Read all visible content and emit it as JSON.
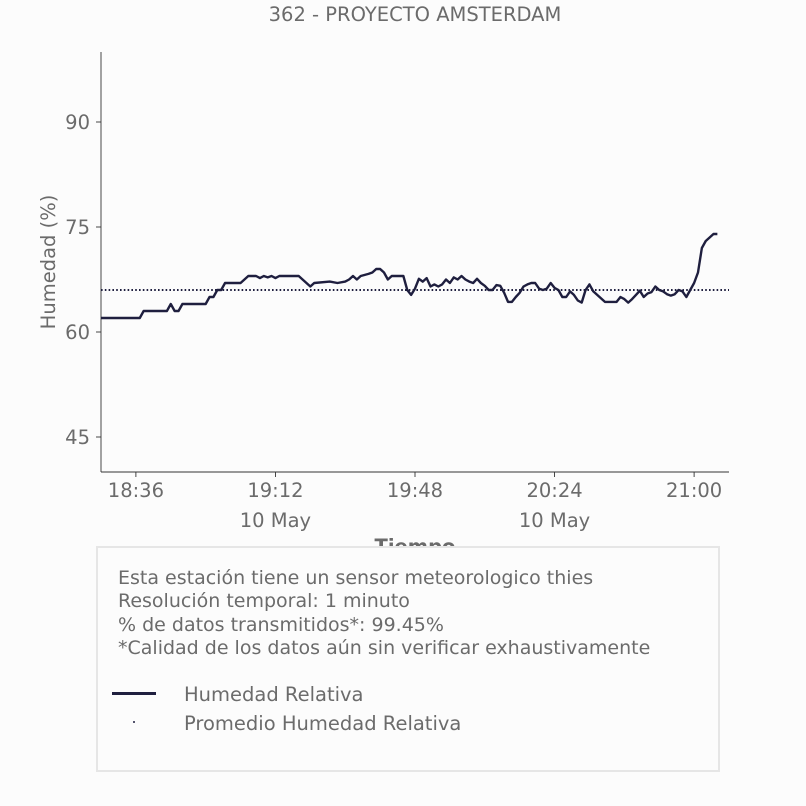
{
  "chart_data": {
    "type": "line",
    "title": "362 - PROYECTO AMSTERDAM",
    "xlabel": "Tiempo",
    "ylabel": "Humedad (%)",
    "ylim": [
      40,
      100
    ],
    "yticks": [
      45,
      60,
      75,
      90
    ],
    "xlim": [
      "18:27",
      "21:09"
    ],
    "xticks": [
      {
        "time": "18:36",
        "label": "18:36",
        "date": ""
      },
      {
        "time": "19:12",
        "label": "19:12",
        "date": "10 May"
      },
      {
        "time": "19:48",
        "label": "19:48",
        "date": ""
      },
      {
        "time": "20:24",
        "label": "20:24",
        "date": "10 May"
      },
      {
        "time": "21:00",
        "label": "21:00",
        "date": ""
      }
    ],
    "grid": false,
    "series": [
      {
        "name": "Humedad Relativa",
        "color": "#1f1f3f",
        "style": "solid",
        "points": [
          [
            "18:27",
            62
          ],
          [
            "18:37",
            62
          ],
          [
            "18:38",
            63
          ],
          [
            "18:44",
            63
          ],
          [
            "18:45",
            64
          ],
          [
            "18:46",
            63
          ],
          [
            "18:47",
            63
          ],
          [
            "18:48",
            64
          ],
          [
            "18:54",
            64
          ],
          [
            "18:55",
            65
          ],
          [
            "18:56",
            65
          ],
          [
            "18:57",
            66
          ],
          [
            "18:58",
            66
          ],
          [
            "18:59",
            67
          ],
          [
            "19:03",
            67
          ],
          [
            "19:05",
            68
          ],
          [
            "19:07",
            68
          ],
          [
            "19:08",
            67.7
          ],
          [
            "19:09",
            68
          ],
          [
            "19:10",
            67.8
          ],
          [
            "19:11",
            68
          ],
          [
            "19:12",
            67.7
          ],
          [
            "19:13",
            68
          ],
          [
            "19:15",
            68
          ],
          [
            "19:18",
            68
          ],
          [
            "19:20",
            67
          ],
          [
            "19:21",
            66.5
          ],
          [
            "19:22",
            67
          ],
          [
            "19:26",
            67.2
          ],
          [
            "19:28",
            67
          ],
          [
            "19:30",
            67.2
          ],
          [
            "19:31",
            67.5
          ],
          [
            "19:32",
            68
          ],
          [
            "19:33",
            67.5
          ],
          [
            "19:34",
            68
          ],
          [
            "19:36",
            68.3
          ],
          [
            "19:37",
            68.5
          ],
          [
            "19:38",
            69
          ],
          [
            "19:39",
            69
          ],
          [
            "19:40",
            68.5
          ],
          [
            "19:41",
            67.5
          ],
          [
            "19:42",
            68
          ],
          [
            "19:45",
            68
          ],
          [
            "19:46",
            66
          ],
          [
            "19:47",
            65.3
          ],
          [
            "19:48",
            66.2
          ],
          [
            "19:49",
            67.6
          ],
          [
            "19:50",
            67.2
          ],
          [
            "19:51",
            67.7
          ],
          [
            "19:52",
            66.5
          ],
          [
            "19:53",
            66.8
          ],
          [
            "19:54",
            66.5
          ],
          [
            "19:55",
            66.8
          ],
          [
            "19:56",
            67.5
          ],
          [
            "19:57",
            67
          ],
          [
            "19:58",
            67.8
          ],
          [
            "19:59",
            67.5
          ],
          [
            "20:00",
            68
          ],
          [
            "20:01",
            67.5
          ],
          [
            "20:02",
            67.2
          ],
          [
            "20:03",
            67
          ],
          [
            "20:04",
            67.6
          ],
          [
            "20:05",
            67
          ],
          [
            "20:06",
            66.6
          ],
          [
            "20:07",
            66
          ],
          [
            "20:08",
            66
          ],
          [
            "20:09",
            66.7
          ],
          [
            "20:10",
            66.6
          ],
          [
            "20:11",
            65.6
          ],
          [
            "20:12",
            64.3
          ],
          [
            "20:13",
            64.3
          ],
          [
            "20:14",
            65
          ],
          [
            "20:15",
            65.6
          ],
          [
            "20:16",
            66.5
          ],
          [
            "20:17",
            66.8
          ],
          [
            "20:18",
            67
          ],
          [
            "20:19",
            67
          ],
          [
            "20:20",
            66.2
          ],
          [
            "20:21",
            66
          ],
          [
            "20:22",
            66.2
          ],
          [
            "20:23",
            67
          ],
          [
            "20:24",
            66.3
          ],
          [
            "20:25",
            66
          ],
          [
            "20:26",
            65
          ],
          [
            "20:27",
            65
          ],
          [
            "20:28",
            65.8
          ],
          [
            "20:29",
            65.3
          ],
          [
            "20:30",
            64.5
          ],
          [
            "20:31",
            64.2
          ],
          [
            "20:32",
            66
          ],
          [
            "20:33",
            66.8
          ],
          [
            "20:34",
            65.8
          ],
          [
            "20:35",
            65.3
          ],
          [
            "20:36",
            64.8
          ],
          [
            "20:37",
            64.3
          ],
          [
            "20:40",
            64.3
          ],
          [
            "20:41",
            65
          ],
          [
            "20:42",
            64.7
          ],
          [
            "20:43",
            64.2
          ],
          [
            "20:44",
            64.7
          ],
          [
            "20:45",
            65.3
          ],
          [
            "20:46",
            65.9
          ],
          [
            "20:47",
            65
          ],
          [
            "20:48",
            65.5
          ],
          [
            "20:49",
            65.7
          ],
          [
            "20:50",
            66.5
          ],
          [
            "20:51",
            66
          ],
          [
            "20:52",
            65.8
          ],
          [
            "20:53",
            65.4
          ],
          [
            "20:54",
            65.2
          ],
          [
            "20:55",
            65.4
          ],
          [
            "20:56",
            66
          ],
          [
            "20:57",
            65.8
          ],
          [
            "20:58",
            65
          ],
          [
            "20:59",
            66
          ],
          [
            "21:00",
            67
          ],
          [
            "21:01",
            68.5
          ],
          [
            "21:02",
            72
          ],
          [
            "21:03",
            73
          ],
          [
            "21:04",
            73.5
          ],
          [
            "21:05",
            74
          ],
          [
            "21:06",
            74
          ]
        ]
      },
      {
        "name": "Promedio Humedad Relativa",
        "color": "#1f1f3f",
        "style": "dotted",
        "points": [
          [
            "18:27",
            66
          ],
          [
            "21:09",
            66
          ]
        ]
      }
    ],
    "legend_position": "bottom"
  },
  "info": {
    "lines": [
      "Esta estación tiene un sensor meteorologico thies",
      "Resolución temporal: 1 minuto",
      "% de datos transmitidos*: 99.45%",
      "*Calidad de los datos aún sin verificar exhaustivamente"
    ]
  },
  "colors": {
    "text": "#6b6b6b",
    "series": "#1f1f3f",
    "background": "#fcfcfc",
    "box_border": "#e6e6e6"
  }
}
